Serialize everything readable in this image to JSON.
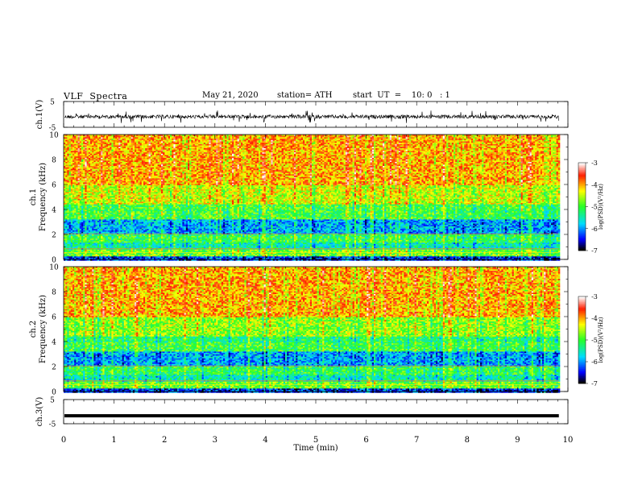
{
  "header": {
    "title": "VLF  Spectra",
    "date": "May 21, 2020",
    "station": "station= ATH",
    "start_ut": "start  UT  =    10: 0   : 1"
  },
  "chart_data": [
    {
      "type": "line",
      "panel": "ch1-waveform",
      "ylabel": "ch.1(V)",
      "yticks": [
        "5",
        "-5"
      ],
      "ylim": [
        -5,
        5
      ],
      "xlim": [
        0,
        10
      ],
      "x_data_end": 9.82,
      "baseline": -0.9,
      "series_color": "#000000"
    },
    {
      "type": "heatmap",
      "panel": "ch1-spectrogram",
      "ylabel_top": "ch.1",
      "ylabel": "Frequency  (kHz)",
      "yticks": [
        "0",
        "2",
        "4",
        "6",
        "8",
        "10"
      ],
      "ylim": [
        0,
        10
      ],
      "xlim": [
        0,
        10
      ],
      "x_data_end": 9.82,
      "colorbar": {
        "ticks": [
          "-3",
          "-4",
          "-5",
          "-6",
          "-7"
        ],
        "range": [
          -7,
          -3
        ],
        "label": "log(PSD)(V²/Hz)"
      }
    },
    {
      "type": "heatmap",
      "panel": "ch2-spectrogram",
      "ylabel_top": "ch.2",
      "ylabel": "Frequency  (kHz)",
      "yticks": [
        "0",
        "2",
        "4",
        "6",
        "8",
        "10"
      ],
      "ylim": [
        0,
        10
      ],
      "xlim": [
        0,
        10
      ],
      "x_data_end": 9.82,
      "colorbar": {
        "ticks": [
          "-3",
          "-4",
          "-5",
          "-6",
          "-7"
        ],
        "range": [
          -7,
          -3
        ],
        "label": "log(PSD)(V²/Hz)"
      }
    },
    {
      "type": "line",
      "panel": "ch3-waveform",
      "ylabel": "ch.3(V)",
      "yticks": [
        "5",
        "-5"
      ],
      "ylim": [
        -5,
        5
      ],
      "xlim": [
        0,
        10
      ],
      "x_data_end": 9.82,
      "constant_value": -1.7,
      "series_color": "#000000"
    }
  ],
  "x_axis": {
    "label": "Time  (min)",
    "ticks": [
      "0",
      "1",
      "2",
      "3",
      "4",
      "5",
      "6",
      "7",
      "8",
      "9",
      "10"
    ]
  }
}
